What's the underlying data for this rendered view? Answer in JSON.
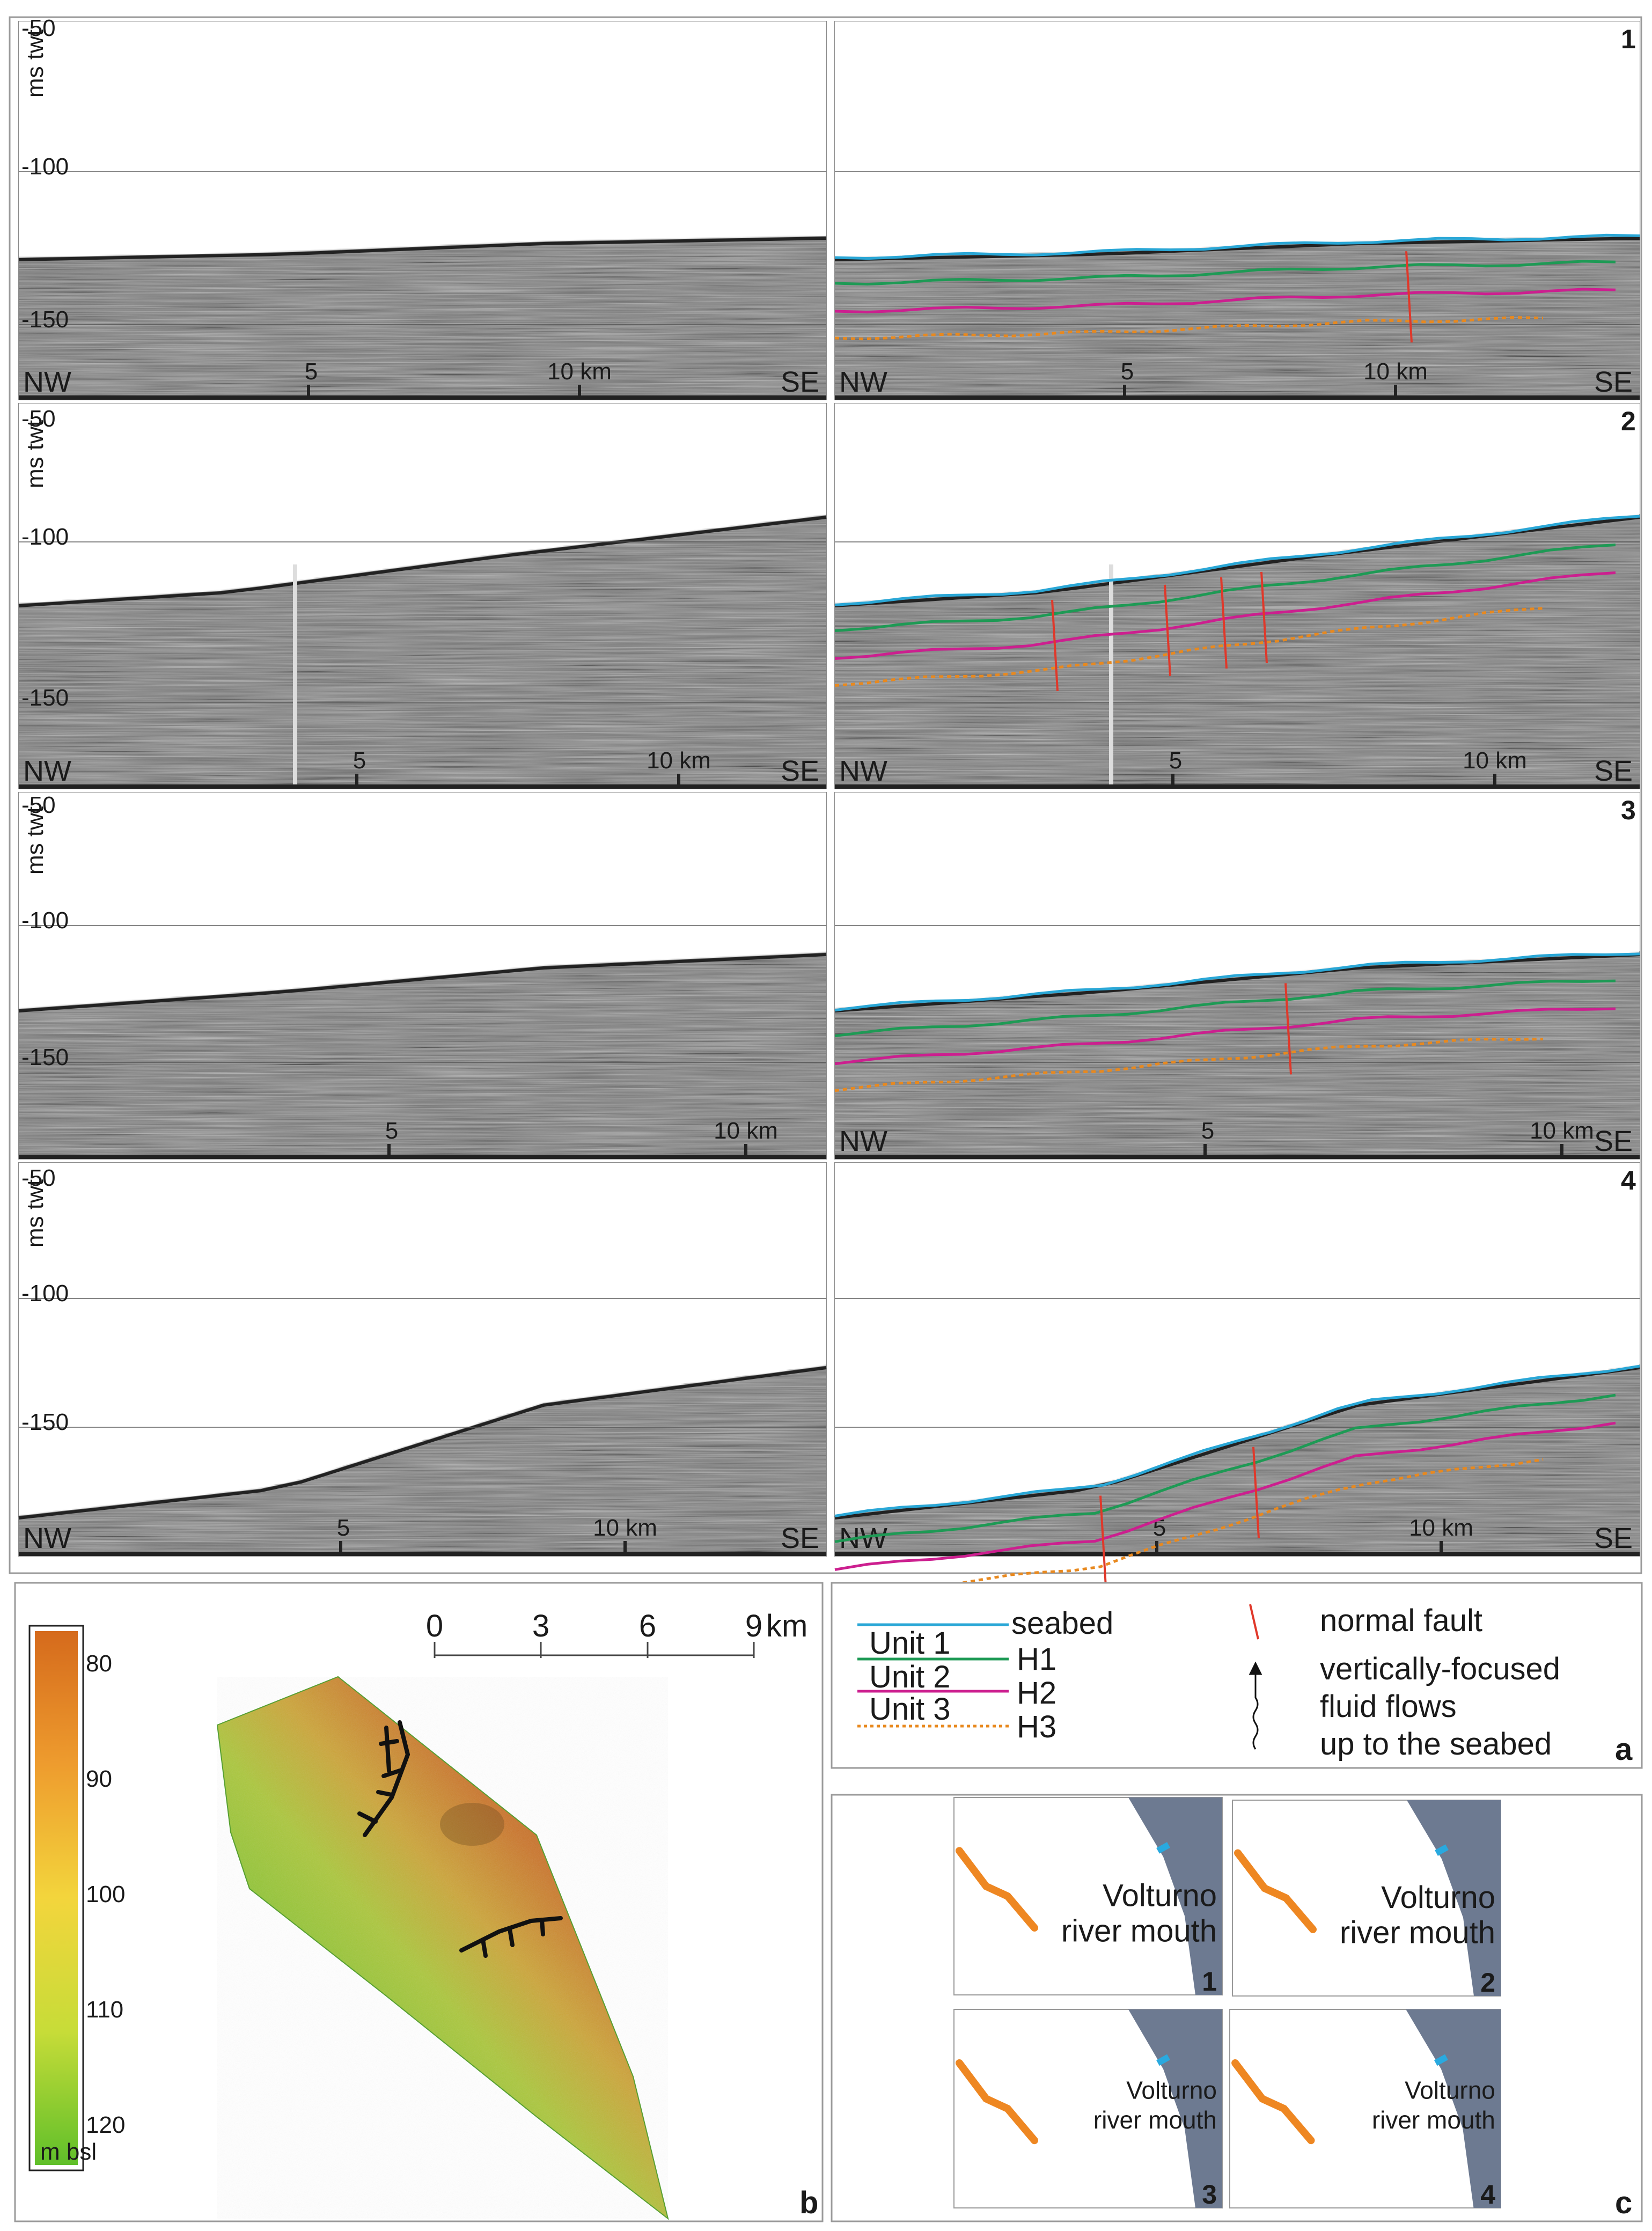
{
  "figure": {
    "panel_letters": {
      "a": "a",
      "b": "b",
      "c": "c"
    },
    "profiles": [
      {
        "id": "1",
        "ticks": [
          "-50",
          "-100",
          "-150"
        ],
        "y_unit": "ms twt",
        "x_labels": [
          "5",
          "10 km"
        ],
        "left_end": "NW",
        "right_end": "SE"
      },
      {
        "id": "2",
        "ticks": [
          "-50",
          "-100",
          "-150"
        ],
        "y_unit": "ms twt",
        "x_labels": [
          "5",
          "10 km"
        ],
        "left_end": "NW",
        "right_end": "SE"
      },
      {
        "id": "3",
        "ticks": [
          "-50",
          "-100",
          "-150"
        ],
        "y_unit": "ms twt",
        "x_labels": [
          "5",
          "10 km"
        ],
        "left_end": "NW",
        "right_end": "SE"
      },
      {
        "id": "4",
        "ticks": [
          "-50",
          "-100",
          "-150"
        ],
        "y_unit": "ms twt",
        "x_labels": [
          "5",
          "10 km"
        ],
        "left_end": "NW",
        "right_end": "SE"
      }
    ],
    "legend": {
      "units": [
        "Unit 1",
        "Unit 2",
        "Unit 3"
      ],
      "horizons": [
        {
          "label": "seabed",
          "color": "#2aa7d6"
        },
        {
          "label": "H1",
          "color": "#1e9a55"
        },
        {
          "label": "H2",
          "color": "#cc1f8f"
        },
        {
          "label": "H3",
          "color": "#e8891f"
        }
      ],
      "fault_label": "normal fault",
      "fault_color": "#e0382a",
      "fluid_label_lines": [
        "vertically-focused",
        "fluid flows",
        "up to the seabed"
      ]
    },
    "map": {
      "scale_labels": [
        "0",
        "3",
        "6",
        "9"
      ],
      "scale_unit": "km",
      "colorbar_labels": [
        "80",
        "90",
        "100",
        "110",
        "120"
      ],
      "colorbar_unit": "m bsl",
      "colors": {
        "high": "#d56a1c",
        "mid": "#f0d83a",
        "low": "#5fbf2a"
      }
    },
    "insets": {
      "labels": [
        "1",
        "2",
        "3",
        "4"
      ],
      "place_line1": "Volturno",
      "place_line2": "river mouth",
      "land_color": "#6d7a91",
      "track_color": "#ee8722",
      "mouth_color": "#29a9df"
    }
  }
}
